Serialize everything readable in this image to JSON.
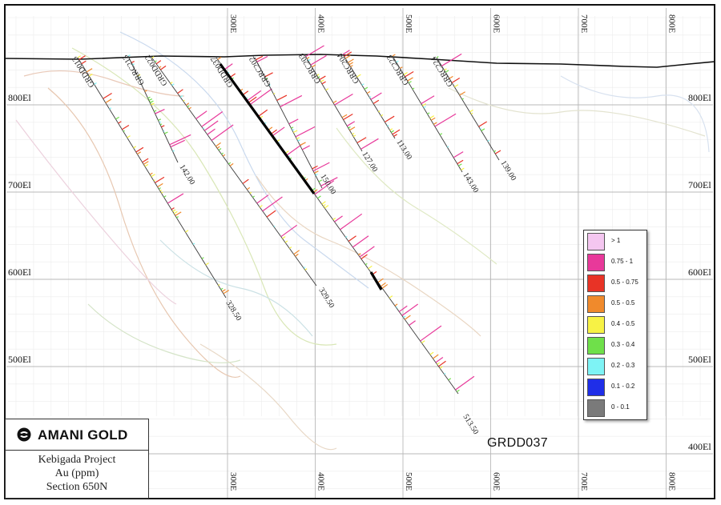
{
  "map": {
    "eastings": [
      "300E",
      "400E",
      "500E",
      "600E",
      "700E",
      "800E"
    ],
    "elevations": [
      "800El",
      "700El",
      "600El",
      "500El",
      "400El"
    ],
    "drillholes": [
      {
        "name": "GRDD013",
        "depth_label": "328.50"
      },
      {
        "name": "GRRC213",
        "depth_label": "142.00"
      },
      {
        "name": "GRDD022",
        "depth_label": "329.50"
      },
      {
        "name": "GRDD037",
        "depth_label": "513.50"
      },
      {
        "name": "GRRC202",
        "depth_label": "150.00"
      },
      {
        "name": "GRRC203",
        "depth_label": "127.00"
      },
      {
        "name": "GRRC204",
        "depth_label": "113.00"
      },
      {
        "name": "GRRC223",
        "depth_label": "143.00"
      },
      {
        "name": "GRRC224",
        "depth_label": "139.00"
      }
    ],
    "callout": "GRDD037"
  },
  "legend": {
    "items": [
      {
        "label": "> 1",
        "color": "#f4c6f0"
      },
      {
        "label": "0.75 - 1",
        "color": "#e8399a"
      },
      {
        "label": "0.5 - 0.75",
        "color": "#e83326"
      },
      {
        "label": "0.5 - 0.5",
        "color": "#f08a2c"
      },
      {
        "label": "0.4 - 0.5",
        "color": "#f7f245"
      },
      {
        "label": "0.3 - 0.4",
        "color": "#6fe04a"
      },
      {
        "label": "0.2 - 0.3",
        "color": "#7ef3f5"
      },
      {
        "label": "0.1 - 0.2",
        "color": "#1f2ee8"
      },
      {
        "label": "0 - 0.1",
        "color": "#7a7a7a"
      }
    ]
  },
  "title_box": {
    "company": "AMANI GOLD",
    "project": "Kebigada Project",
    "units": "Au (ppm)",
    "section": "Section 650N"
  }
}
